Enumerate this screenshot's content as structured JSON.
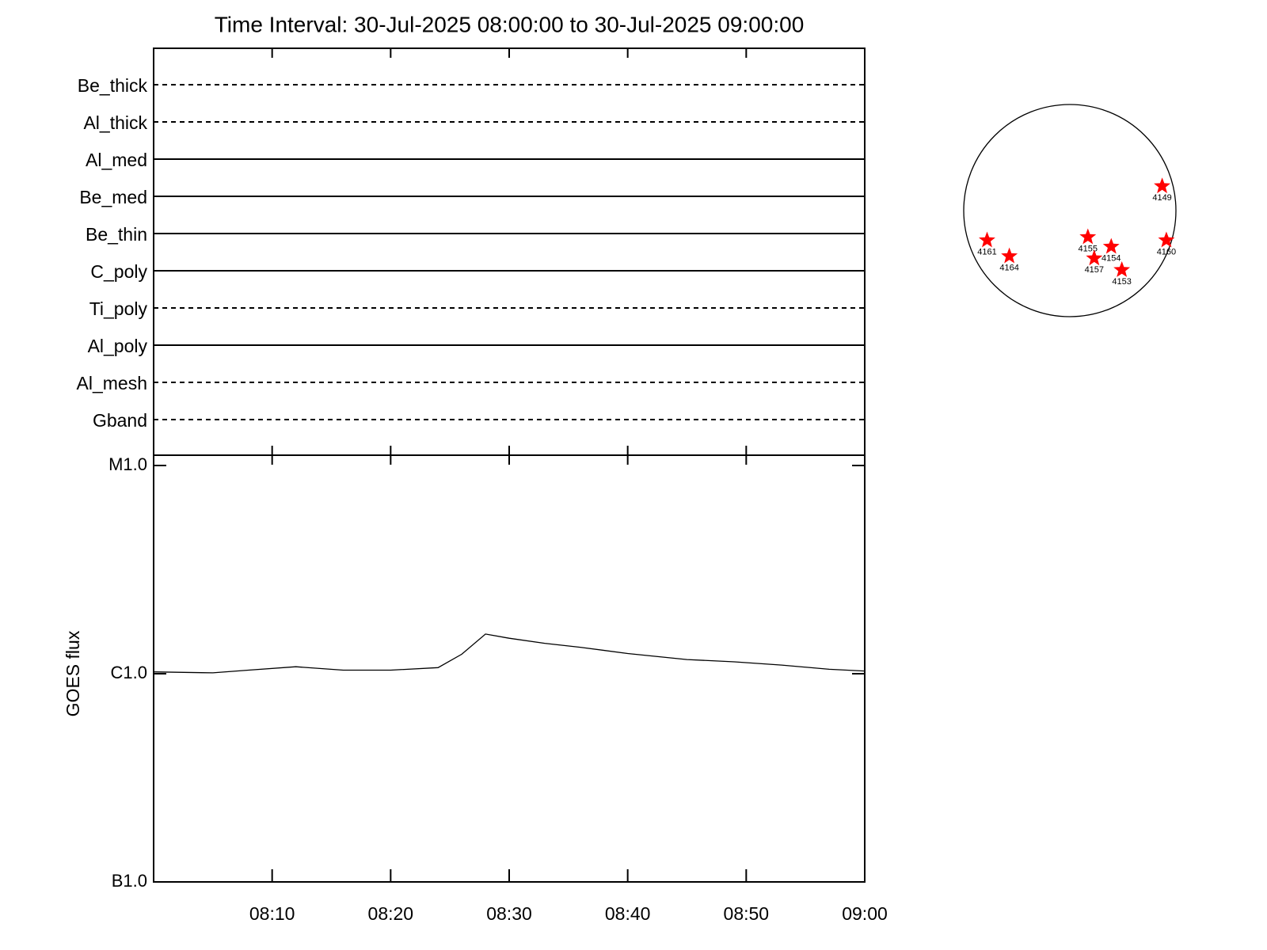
{
  "chart_data": [
    {
      "type": "timeline",
      "title": "Time Interval: 30-Jul-2025 08:00:00 to 30-Jul-2025 09:00:00",
      "categories": [
        "Be_thick",
        "Al_thick",
        "Al_med",
        "Be_med",
        "Be_thin",
        "C_poly",
        "Ti_poly",
        "Al_poly",
        "Al_mesh",
        "Gband"
      ],
      "line_styles": [
        "dashed",
        "dashed",
        "solid",
        "solid",
        "solid",
        "solid",
        "dashed",
        "solid",
        "dashed",
        "dashed"
      ],
      "xlim": [
        "08:00",
        "09:00"
      ],
      "xticks": [
        "08:10",
        "08:20",
        "08:30",
        "08:40",
        "08:50",
        "09:00"
      ]
    },
    {
      "type": "line",
      "ylabel": "GOES flux",
      "log_scale": true,
      "color": "#000000",
      "x": [
        "08:00",
        "08:05",
        "08:08",
        "08:12",
        "08:16",
        "08:20",
        "08:24",
        "08:26",
        "08:28",
        "08:30",
        "08:33",
        "08:36",
        "08:40",
        "08:45",
        "08:49",
        "08:53",
        "08:57",
        "09:00"
      ],
      "values": [
        1.02e-06,
        1.01e-06,
        1.04e-06,
        1.08e-06,
        1.04e-06,
        1.04e-06,
        1.07e-06,
        1.24e-06,
        1.55e-06,
        1.48e-06,
        1.4e-06,
        1.34e-06,
        1.25e-06,
        1.17e-06,
        1.14e-06,
        1.1e-06,
        1.05e-06,
        1.03e-06
      ],
      "xlim": [
        "08:00",
        "09:00"
      ],
      "xticks": [
        "08:10",
        "08:20",
        "08:30",
        "08:40",
        "08:50",
        "09:00"
      ],
      "ylim": [
        1e-07,
        1e-05
      ],
      "yticks": [
        {
          "value": 1e-07,
          "label": "B1.0"
        },
        {
          "value": 1e-06,
          "label": "C1.0"
        },
        {
          "value": 1e-05,
          "label": "M1.0"
        }
      ]
    },
    {
      "type": "disk",
      "color": "#ff0000",
      "labels": [
        "4149",
        "4161",
        "4164",
        "4155",
        "4154",
        "4157",
        "4153",
        "4160"
      ],
      "x": [
        0.87,
        -0.78,
        -0.57,
        0.17,
        0.39,
        0.23,
        0.49,
        0.91
      ],
      "y": [
        0.23,
        -0.28,
        -0.43,
        -0.25,
        -0.34,
        -0.45,
        -0.56,
        -0.28
      ],
      "xlim": [
        -1,
        1
      ],
      "ylim": [
        -1,
        1
      ]
    }
  ]
}
